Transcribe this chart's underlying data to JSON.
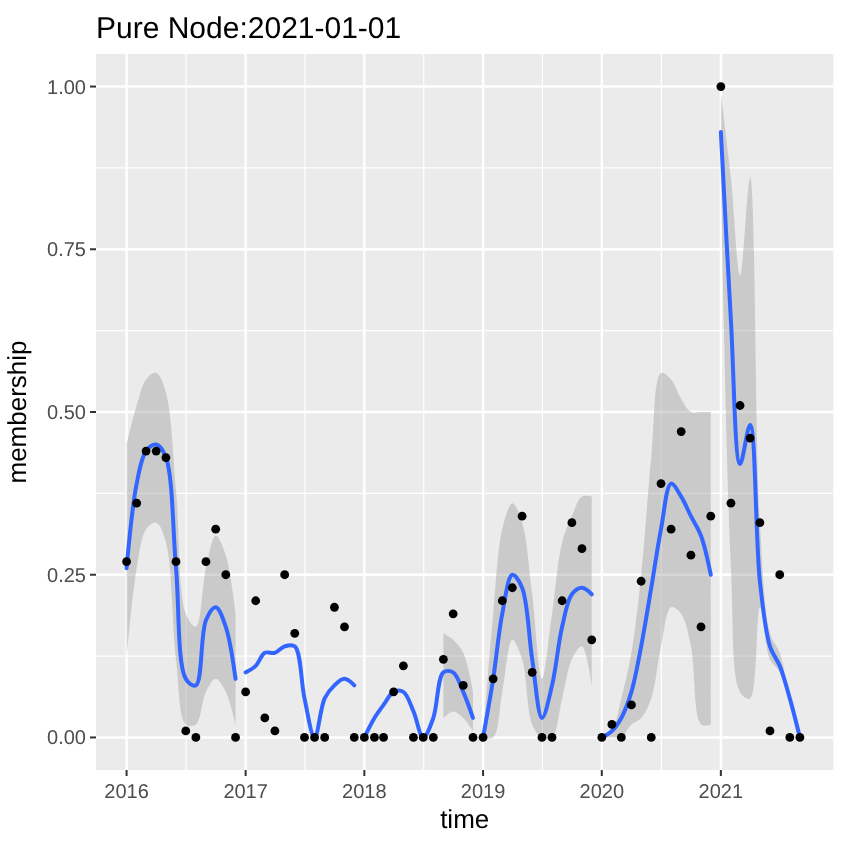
{
  "chart_data": {
    "type": "scatter",
    "title": "Pure Node:2021-01-01",
    "xlabel": "time",
    "ylabel": "membership",
    "xlim": [
      "2015-09-29",
      "2021-12-13"
    ],
    "xticks": [
      "2016",
      "2017",
      "2018",
      "2019",
      "2020",
      "2021"
    ],
    "ylim": [
      -0.05,
      1.05
    ],
    "yticks": [
      {
        "value": 0,
        "label": "0.00"
      },
      {
        "value": 0.25,
        "label": "0.25"
      },
      {
        "value": 0.5,
        "label": "0.50"
      },
      {
        "value": 0.75,
        "label": "0.75"
      },
      {
        "value": 1,
        "label": "1.00"
      }
    ],
    "grid": true,
    "series": [
      {
        "type": "line",
        "color": "#3366ff",
        "x": [
          "2016-01",
          "2016-02",
          "2016-03",
          "2016-04",
          "2016-05",
          "2016-06",
          "2016-07",
          "2016-08",
          "2016-09",
          "2016-10",
          "2016-11",
          "2016-12"
        ],
        "values": [
          0.26,
          0.39,
          0.44,
          0.45,
          0.43,
          0.26,
          0.09,
          0.08,
          0.18,
          0.2,
          0.17,
          0.09
        ],
        "lower": [
          0.12,
          0.26,
          0.32,
          0.33,
          0.3,
          0.12,
          0.02,
          0.02,
          0.07,
          0.09,
          0.07,
          0.02
        ],
        "upper": [
          0.45,
          0.51,
          0.55,
          0.56,
          0.53,
          0.38,
          0.19,
          0.17,
          0.26,
          0.31,
          0.28,
          0.19
        ]
      },
      {
        "type": "line",
        "color": "#3366ff",
        "x": [
          "2017-01",
          "2017-02",
          "2017-03",
          "2017-04",
          "2017-05",
          "2017-06",
          "2017-07",
          "2017-08",
          "2017-09",
          "2017-10",
          "2017-11",
          "2017-12"
        ],
        "values": [
          0.1,
          0.11,
          0.13,
          0.13,
          0.14,
          0.14,
          0.06,
          0,
          0.06,
          0.08,
          0.09,
          0.08
        ]
      },
      {
        "type": "line",
        "color": "#3366ff",
        "x": [
          "2018-01",
          "2018-02",
          "2018-03",
          "2018-04",
          "2018-05",
          "2018-06",
          "2018-07",
          "2018-08",
          "2018-09",
          "2018-10",
          "2018-11",
          "2018-12"
        ],
        "values": [
          0,
          0.03,
          0.05,
          0.07,
          0.07,
          0.04,
          0,
          0.03,
          0.1,
          0.1,
          0.07,
          0.03
        ],
        "lower": [
          null,
          null,
          null,
          null,
          null,
          null,
          null,
          null,
          0.03,
          0.04,
          0.03,
          0.01
        ],
        "upper": [
          null,
          null,
          null,
          null,
          null,
          null,
          null,
          null,
          0.16,
          0.15,
          0.13,
          0.07
        ]
      },
      {
        "type": "line",
        "color": "#3366ff",
        "x": [
          "2019-01",
          "2019-02",
          "2019-03",
          "2019-04",
          "2019-05",
          "2019-06",
          "2019-07",
          "2019-08",
          "2019-09",
          "2019-10",
          "2019-11",
          "2019-12"
        ],
        "values": [
          0,
          0.09,
          0.19,
          0.25,
          0.23,
          0.12,
          0.03,
          0.08,
          0.17,
          0.22,
          0.23,
          0.22
        ],
        "lower": [
          0,
          0,
          0.07,
          0.15,
          0.12,
          0.02,
          0,
          0,
          0.06,
          0.12,
          0.14,
          0.08
        ],
        "upper": [
          0,
          0.19,
          0.32,
          0.36,
          0.33,
          0.22,
          0.09,
          0.19,
          0.3,
          0.34,
          0.37,
          0.37
        ]
      },
      {
        "type": "line",
        "color": "#3366ff",
        "x": [
          "2020-01",
          "2020-02",
          "2020-03",
          "2020-04",
          "2020-05",
          "2020-06",
          "2020-07",
          "2020-08",
          "2020-09",
          "2020-10",
          "2020-11",
          "2020-12"
        ],
        "values": [
          0,
          0.01,
          0.03,
          0.07,
          0.14,
          0.23,
          0.32,
          0.39,
          0.37,
          0.34,
          0.31,
          0.25
        ],
        "lower": [
          0,
          0,
          0,
          0.02,
          0.03,
          0.06,
          0.14,
          0.2,
          0.19,
          0.14,
          0.02,
          0.02
        ],
        "upper": [
          0,
          0.01,
          0.06,
          0.13,
          0.25,
          0.43,
          0.56,
          0.55,
          0.52,
          0.5,
          0.5,
          0.5
        ]
      },
      {
        "type": "line",
        "color": "#3366ff",
        "x": [
          "2021-01",
          "2021-02",
          "2021-03",
          "2021-04",
          "2021-05",
          "2021-06",
          "2021-07",
          "2021-08",
          "2021-09"
        ],
        "values": [
          0.93,
          0.64,
          0.42,
          0.48,
          0.24,
          0.14,
          0.11,
          0.06,
          0
        ],
        "lower": [
          0.86,
          0.26,
          0.07,
          0.06,
          0.2,
          0.12,
          0.1,
          0.05,
          0
        ],
        "upper": [
          0.99,
          0.86,
          0.71,
          0.86,
          0.33,
          0.16,
          0.13,
          0.06,
          0
        ]
      },
      {
        "marker": "circle",
        "color": "#000000",
        "x": [
          "2016-01",
          "2016-02",
          "2016-03",
          "2016-04",
          "2016-05",
          "2016-06",
          "2016-07",
          "2016-08",
          "2016-09",
          "2016-10",
          "2016-11",
          "2016-12",
          "2017-01",
          "2017-02",
          "2017-03",
          "2017-04",
          "2017-05",
          "2017-06",
          "2017-07",
          "2017-08",
          "2017-09",
          "2017-10",
          "2017-11",
          "2017-12",
          "2018-01",
          "2018-02",
          "2018-03",
          "2018-04",
          "2018-05",
          "2018-06",
          "2018-07",
          "2018-08",
          "2018-09",
          "2018-10",
          "2018-11",
          "2018-12",
          "2019-01",
          "2019-02",
          "2019-03",
          "2019-04",
          "2019-05",
          "2019-06",
          "2019-07",
          "2019-08",
          "2019-09",
          "2019-10",
          "2019-11",
          "2019-12",
          "2020-01",
          "2020-02",
          "2020-03",
          "2020-04",
          "2020-05",
          "2020-06",
          "2020-07",
          "2020-08",
          "2020-09",
          "2020-10",
          "2020-11",
          "2020-12",
          "2021-01",
          "2021-02",
          "2021-03",
          "2021-04",
          "2021-05",
          "2021-06",
          "2021-07",
          "2021-08",
          "2021-09"
        ],
        "values": [
          0.27,
          0.36,
          0.44,
          0.44,
          0.43,
          0.27,
          0.01,
          0,
          0.27,
          0.32,
          0.25,
          0,
          0.07,
          0.21,
          0.03,
          0.01,
          0.25,
          0.16,
          0,
          0,
          0,
          0.2,
          0.17,
          0,
          0,
          0,
          0,
          0.07,
          0.11,
          0,
          0,
          0,
          0.12,
          0.19,
          0.08,
          0,
          0,
          0.09,
          0.21,
          0.23,
          0.34,
          0.1,
          0,
          0,
          0.21,
          0.33,
          0.29,
          0.15,
          0,
          0.02,
          0,
          0.05,
          0.24,
          0,
          0.39,
          0.32,
          0.47,
          0.28,
          0.17,
          0.34,
          1,
          0.36,
          0.51,
          0.46,
          0.33,
          0.01,
          0.25,
          0,
          0
        ]
      }
    ]
  }
}
